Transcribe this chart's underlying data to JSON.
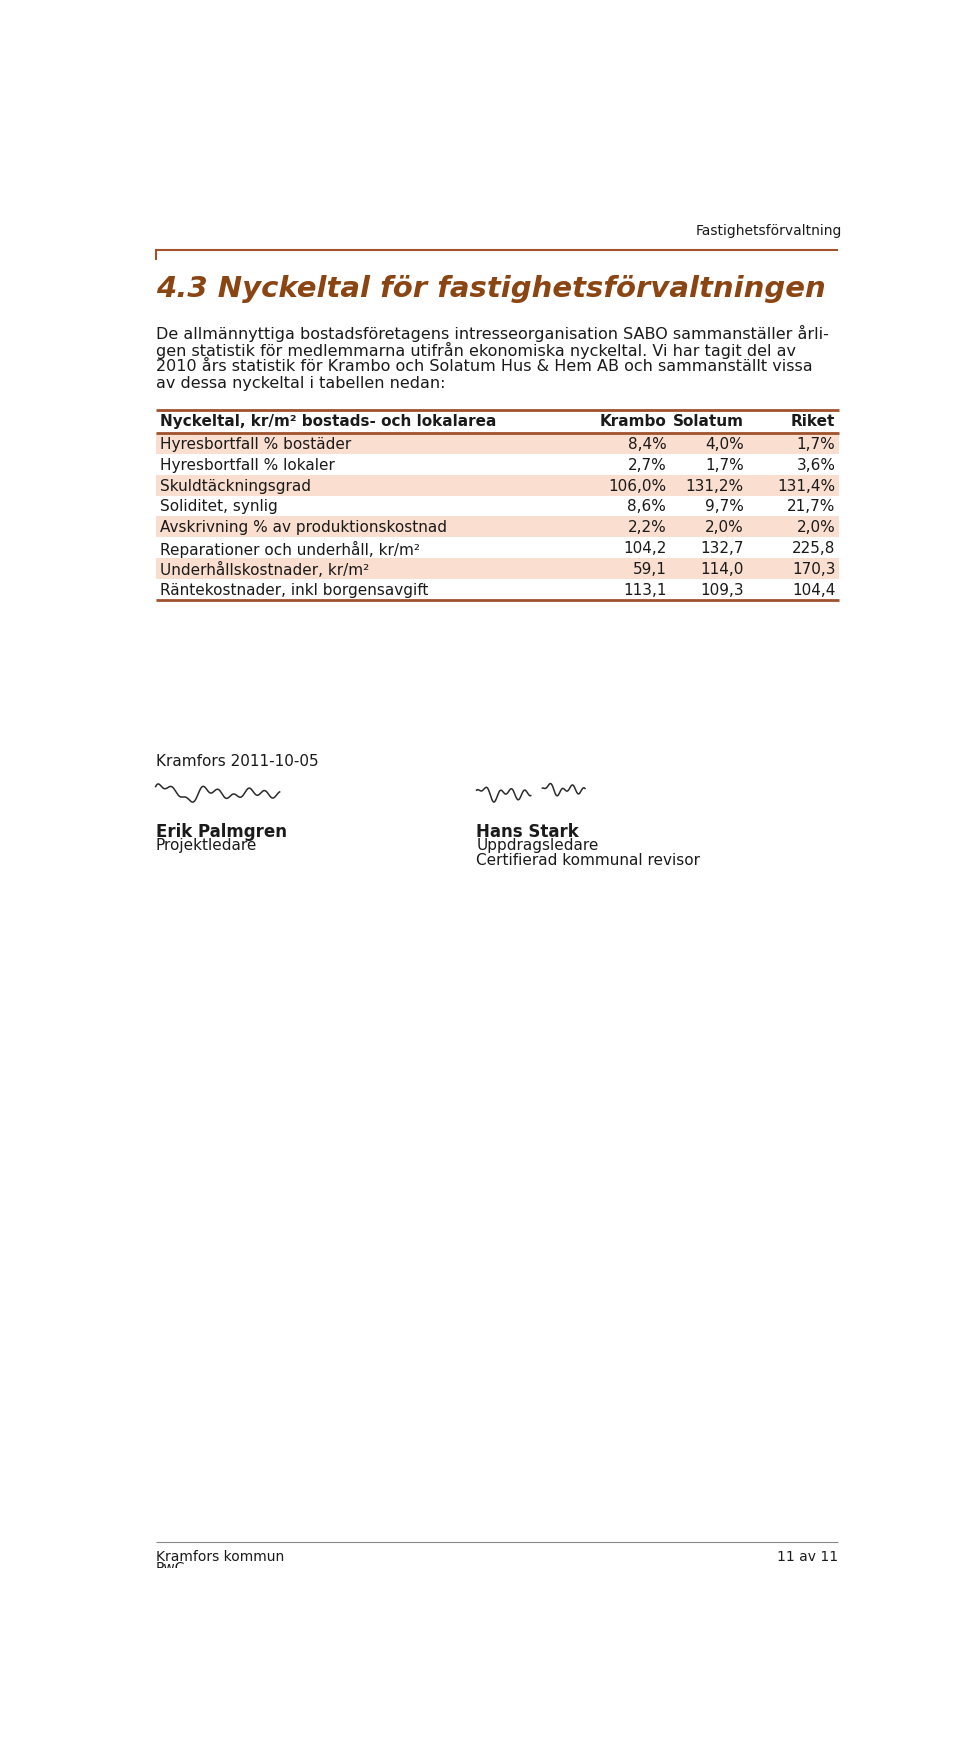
{
  "header_right": "Fastighetsförvaltning",
  "title": "4.3 Nyckeltal för fastighetsförvaltningen",
  "body_para1": "De allmännyttiga bostadsföretagens intresseorganisation SABO sammanställer årli-gen statistik för medlemmarna utifrån ekonomiska nyckeltal. Vi har tagit del av 2010 års statistik för Krambo och Solatum Hus & Hem AB och sammanställt vissa av dessa nyckeltal i tabellen nedan:",
  "body_lines": [
    "De allmännyttiga bostadsföretagens intresseorganisation SABO sammanställer årli-",
    "gen statistik för medlemmarna utifrån ekonomiska nyckeltal. Vi har tagit del av",
    "2010 års statistik för Krambo och Solatum Hus & Hem AB och sammanställt vissa",
    "av dessa nyckeltal i tabellen nedan:"
  ],
  "table_header": [
    "Nyckeltal, kr/m² bostads- och lokalarea",
    "Krambo",
    "Solatum",
    "Riket"
  ],
  "table_rows": [
    [
      "Hyresbortfall % bostäder",
      "8,4%",
      "4,0%",
      "1,7%"
    ],
    [
      "Hyresbortfall % lokaler",
      "2,7%",
      "1,7%",
      "3,6%"
    ],
    [
      "Skuldtäckningsgrad",
      "106,0%",
      "131,2%",
      "131,4%"
    ],
    [
      "Soliditet, synlig",
      "8,6%",
      "9,7%",
      "21,7%"
    ],
    [
      "Avskrivning % av produktionskostnad",
      "2,2%",
      "2,0%",
      "2,0%"
    ],
    [
      "Reparationer och underhåll, kr/m²",
      "104,2",
      "132,7",
      "225,8"
    ],
    [
      "Underhållskostnader, kr/m²",
      "59,1",
      "114,0",
      "170,3"
    ],
    [
      "Räntekostnader, inkl borgensavgift",
      "113,1",
      "109,3",
      "104,4"
    ]
  ],
  "shaded_rows": [
    0,
    2,
    4,
    6
  ],
  "shade_color": "#FADED0",
  "border_color": "#A0522D",
  "title_color": "#8B4513",
  "footer_left1": "Kramfors kommun",
  "footer_left2": "PwC",
  "footer_right": "11 av 11",
  "date_text": "Kramfors 2011-10-05",
  "name1_bold": "Erik Palmgren",
  "name1_normal": "Projektledare",
  "name2_bold": "Hans Stark",
  "name2_normal_lines": [
    "Uppdragsledare",
    "Certifierad kommunal revisor"
  ]
}
